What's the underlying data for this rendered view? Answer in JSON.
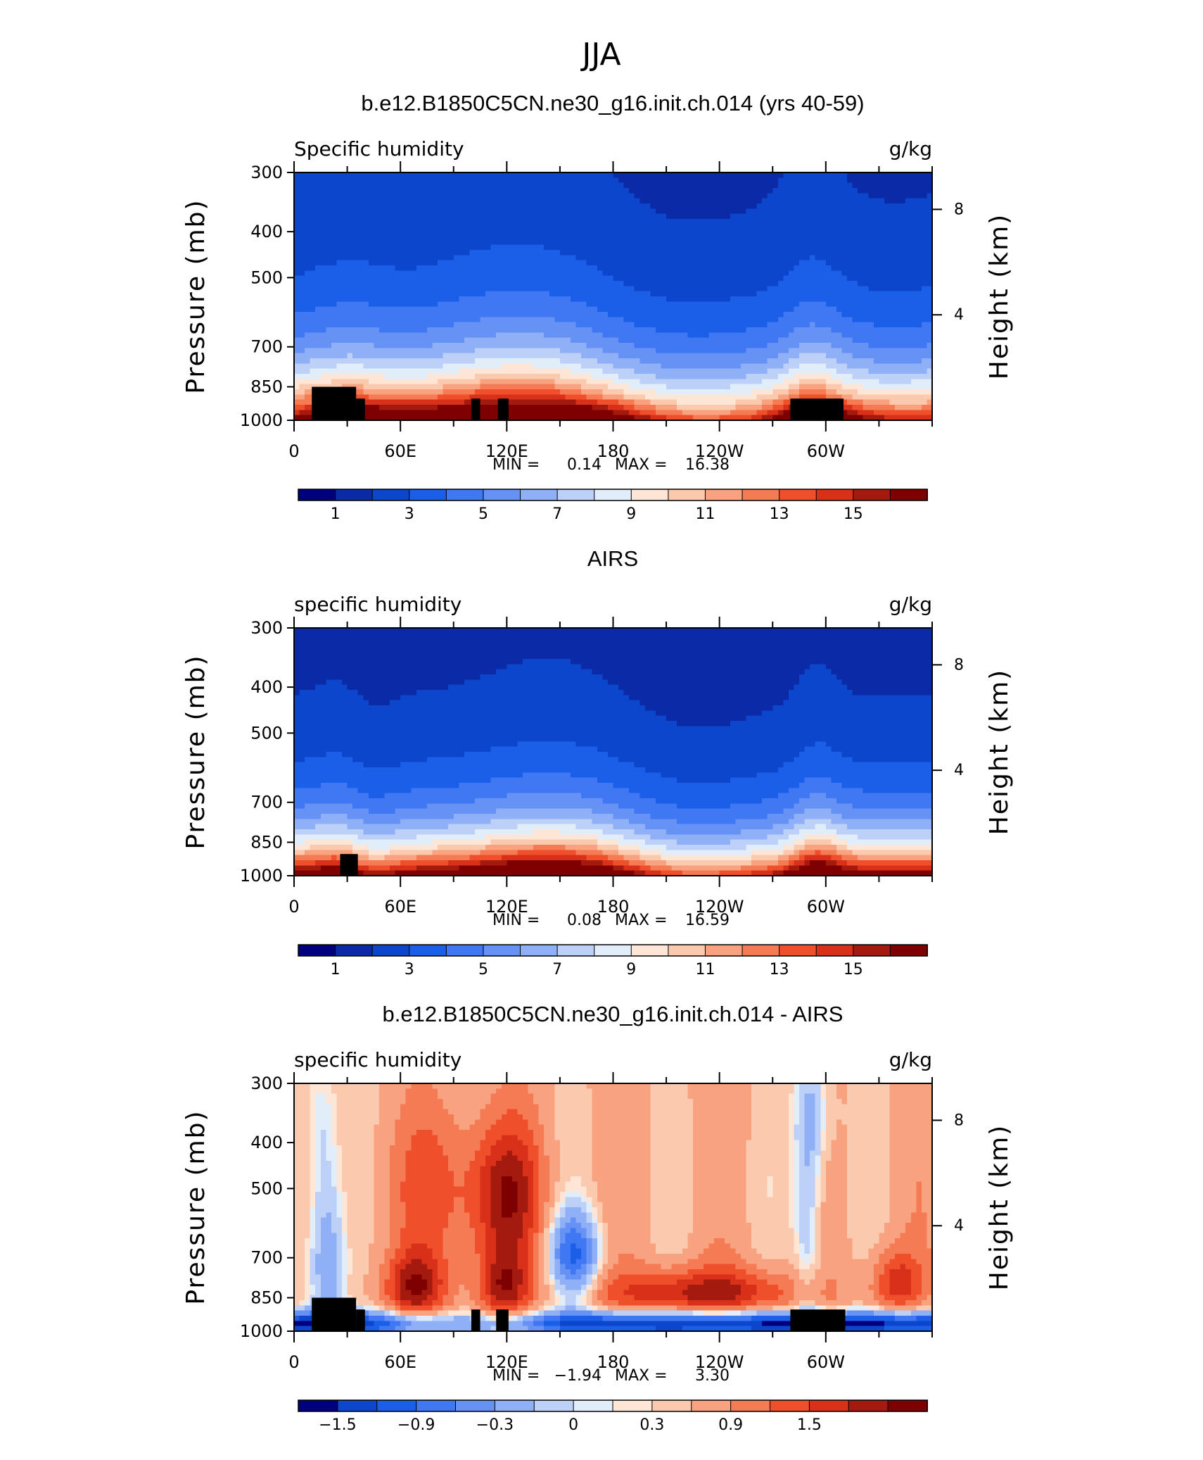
{
  "page_title": "JJA",
  "chart_data": [
    {
      "type": "heatmap",
      "title": "b.e12.B1850C5CN.ne30_g16.init.ch.014 (yrs 40-59)",
      "left_label": "Specific humidity",
      "units": "g/kg",
      "ylabel": "Pressure (mb)",
      "ylabel_right": "Height (km)",
      "y_ticks": [
        "300",
        "400",
        "500",
        "700",
        "850",
        "1000"
      ],
      "y_tick_values": [
        300,
        400,
        500,
        700,
        850,
        1000
      ],
      "y_right_ticks": [
        "8",
        "4"
      ],
      "y_right_tick_values": [
        8,
        4
      ],
      "x_ticks": [
        "0",
        "60E",
        "120E",
        "180",
        "120W",
        "60W"
      ],
      "x_tick_values": [
        0,
        60,
        120,
        180,
        240,
        300
      ],
      "xlim": [
        0,
        360
      ],
      "ylim": [
        1000,
        300
      ],
      "y_scale": "log",
      "stats": {
        "min_label": "MIN =",
        "min": "0.14",
        "max_label": "MAX =",
        "max": "16.38"
      },
      "colorbar": {
        "labels": [
          "1",
          "3",
          "5",
          "7",
          "9",
          "11",
          "13",
          "15"
        ],
        "levels": [
          0,
          1,
          2,
          3,
          4,
          5,
          6,
          7,
          8,
          9,
          10,
          11,
          12,
          13,
          14,
          15,
          16
        ],
        "colors": [
          "#00007f",
          "#0a2aa6",
          "#0c46cc",
          "#1b5ee8",
          "#3f78f2",
          "#6592f4",
          "#8fb0f6",
          "#bcd0f8",
          "#e2edfa",
          "#fde6d6",
          "#fbc9ad",
          "#f8a27f",
          "#f57b54",
          "#f04f2c",
          "#d9301a",
          "#a41a0e",
          "#7f0000"
        ]
      },
      "field": "model",
      "topo_blocks": [
        [
          10,
          35,
          850
        ],
        [
          35,
          40,
          900
        ],
        [
          100,
          105,
          900
        ],
        [
          115,
          121,
          900
        ],
        [
          280,
          310,
          900
        ]
      ]
    },
    {
      "type": "heatmap",
      "title": "AIRS",
      "left_label": "specific humidity",
      "units": "g/kg",
      "ylabel": "Pressure (mb)",
      "ylabel_right": "Height (km)",
      "y_ticks": [
        "300",
        "400",
        "500",
        "700",
        "850",
        "1000"
      ],
      "y_tick_values": [
        300,
        400,
        500,
        700,
        850,
        1000
      ],
      "y_right_ticks": [
        "8",
        "4"
      ],
      "y_right_tick_values": [
        8,
        4
      ],
      "x_ticks": [
        "0",
        "60E",
        "120E",
        "180",
        "120W",
        "60W"
      ],
      "x_tick_values": [
        0,
        60,
        120,
        180,
        240,
        300
      ],
      "xlim": [
        0,
        360
      ],
      "ylim": [
        1000,
        300
      ],
      "y_scale": "log",
      "stats": {
        "min_label": "MIN =",
        "min": "0.08",
        "max_label": "MAX =",
        "max": "16.59"
      },
      "colorbar": {
        "labels": [
          "1",
          "3",
          "5",
          "7",
          "9",
          "11",
          "13",
          "15"
        ],
        "levels": [
          0,
          1,
          2,
          3,
          4,
          5,
          6,
          7,
          8,
          9,
          10,
          11,
          12,
          13,
          14,
          15,
          16
        ],
        "colors": [
          "#00007f",
          "#0a2aa6",
          "#0c46cc",
          "#1b5ee8",
          "#3f78f2",
          "#6592f4",
          "#8fb0f6",
          "#bcd0f8",
          "#e2edfa",
          "#fde6d6",
          "#fbc9ad",
          "#f8a27f",
          "#f57b54",
          "#f04f2c",
          "#d9301a",
          "#a41a0e",
          "#7f0000"
        ]
      },
      "field": "obs",
      "topo_blocks": [
        [
          26,
          36,
          900
        ]
      ]
    },
    {
      "type": "heatmap",
      "title": "b.e12.B1850C5CN.ne30_g16.init.ch.014 - AIRS",
      "left_label": "specific humidity",
      "units": "g/kg",
      "ylabel": "Pressure (mb)",
      "ylabel_right": "Height (km)",
      "y_ticks": [
        "300",
        "400",
        "500",
        "700",
        "850",
        "1000"
      ],
      "y_tick_values": [
        300,
        400,
        500,
        700,
        850,
        1000
      ],
      "y_right_ticks": [
        "8",
        "4"
      ],
      "y_right_tick_values": [
        8,
        4
      ],
      "x_ticks": [
        "0",
        "60E",
        "120E",
        "180",
        "120W",
        "60W"
      ],
      "x_tick_values": [
        0,
        60,
        120,
        180,
        240,
        300
      ],
      "xlim": [
        0,
        360
      ],
      "ylim": [
        1000,
        300
      ],
      "y_scale": "log",
      "stats": {
        "min_label": "MIN =",
        "min": "−1.94",
        "max_label": "MAX =",
        "max": "3.30"
      },
      "colorbar": {
        "labels": [
          "−1.5",
          "−0.9",
          "−0.3",
          "0",
          "0.3",
          "0.9",
          "1.5"
        ],
        "levels": [
          -1.8,
          -1.5,
          -1.2,
          -0.9,
          -0.6,
          -0.3,
          -0.1,
          0,
          0.1,
          0.3,
          0.6,
          0.9,
          1.2,
          1.5,
          1.8,
          2.1
        ],
        "colors": [
          "#00007f",
          "#0c46cc",
          "#1b5ee8",
          "#3f78f2",
          "#6592f4",
          "#8fb0f6",
          "#bcd0f8",
          "#e2edfa",
          "#fde6d6",
          "#fbc9ad",
          "#f8a27f",
          "#f57b54",
          "#f04f2c",
          "#d9301a",
          "#a41a0e",
          "#7f0000"
        ]
      },
      "field": "diff",
      "topo_blocks": [
        [
          10,
          35,
          850
        ],
        [
          35,
          40,
          900
        ],
        [
          100,
          105,
          900
        ],
        [
          114,
          121,
          900
        ],
        [
          280,
          311,
          900
        ]
      ]
    }
  ]
}
